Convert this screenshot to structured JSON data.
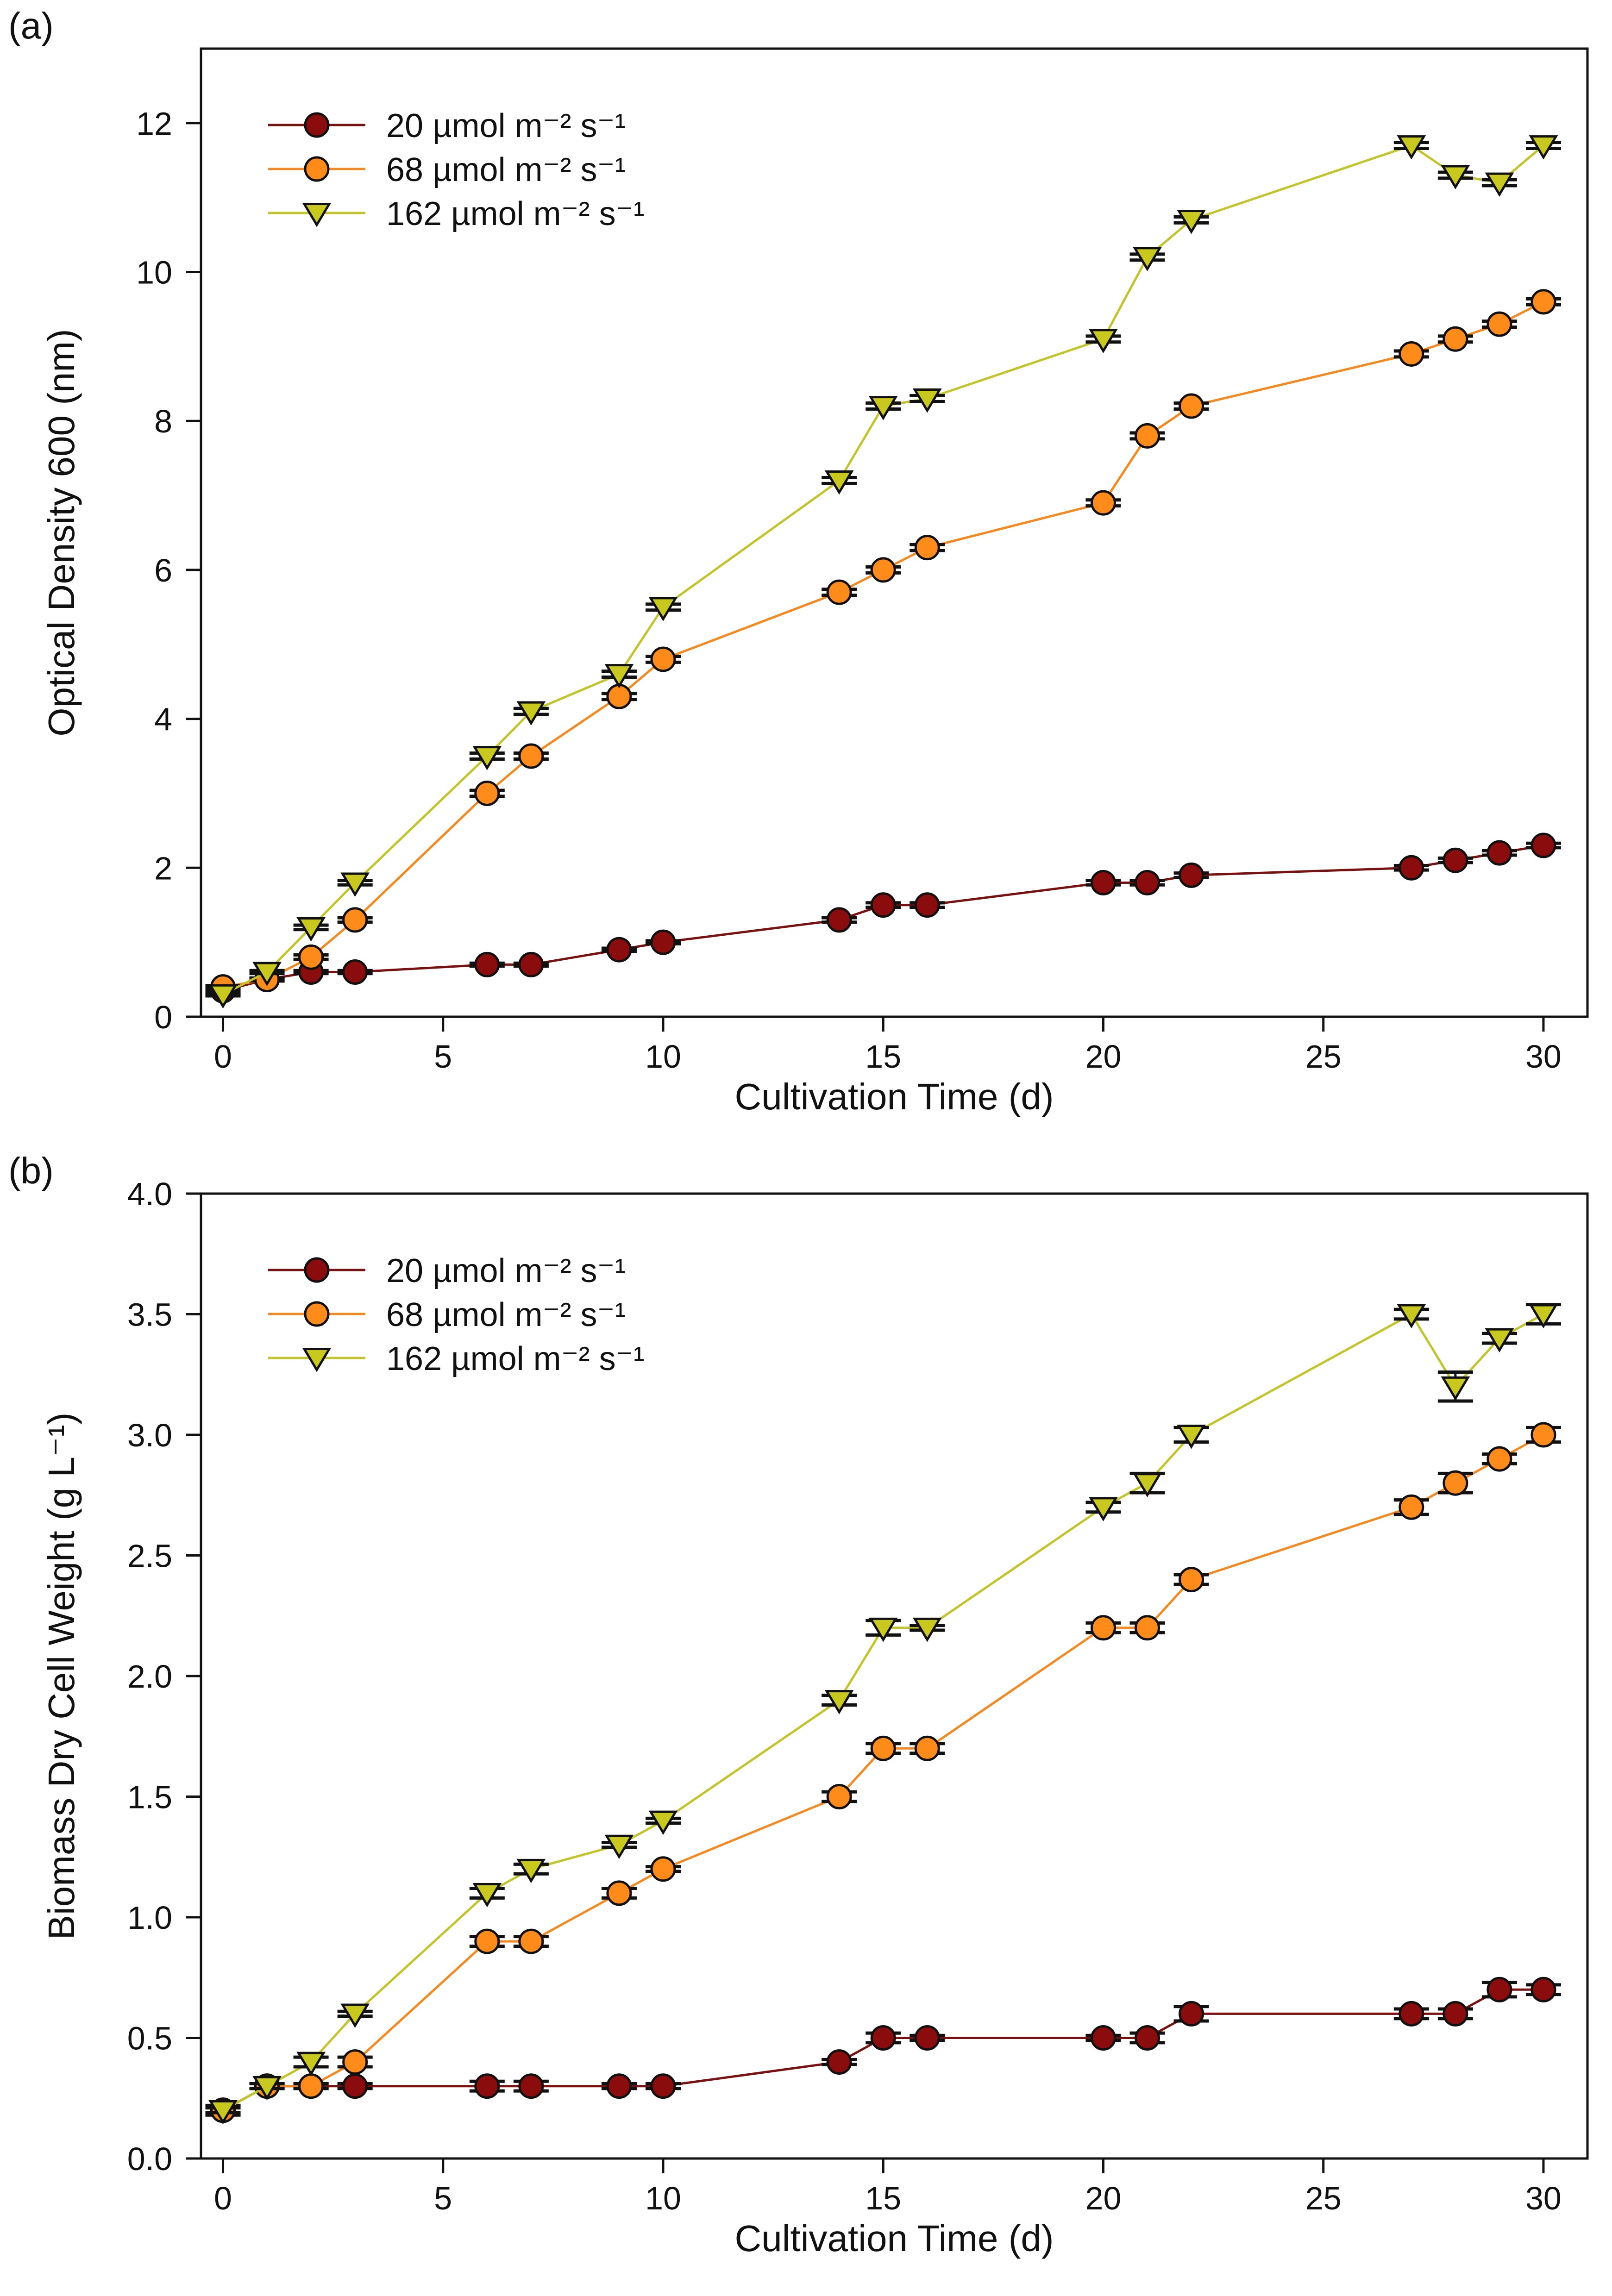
{
  "chart_data": [
    {
      "type": "line",
      "panel_label": "(a)",
      "xlabel": "Cultivation Time (d)",
      "ylabel": "Optical Density 600 (nm)",
      "xlim": [
        -0.5,
        31
      ],
      "ylim": [
        0,
        13
      ],
      "xticks": [
        0,
        5,
        10,
        15,
        20,
        25,
        30
      ],
      "yticks": [
        0,
        2,
        4,
        6,
        8,
        10,
        12
      ],
      "ytick_labels": [
        "0",
        "2",
        "4",
        "6",
        "8",
        "10",
        "12"
      ],
      "grid": false,
      "legend_position": "top-left",
      "x": [
        0,
        1,
        2,
        3,
        6,
        7,
        9,
        10,
        14,
        15,
        16,
        20,
        21,
        22,
        27,
        28,
        29,
        30
      ],
      "series": [
        {
          "name": "20 µmol m⁻² s⁻¹",
          "marker": "circle",
          "line_color": "#7a1010",
          "marker_color": "#8b0c0c",
          "values": [
            0.35,
            0.5,
            0.6,
            0.6,
            0.7,
            0.7,
            0.9,
            1.0,
            1.3,
            1.5,
            1.5,
            1.8,
            1.8,
            1.9,
            2.0,
            2.1,
            2.2,
            2.3
          ],
          "errors": [
            0.02,
            0.02,
            0.02,
            0.02,
            0.02,
            0.02,
            0.02,
            0.02,
            0.03,
            0.03,
            0.03,
            0.03,
            0.03,
            0.03,
            0.03,
            0.03,
            0.03,
            0.03
          ]
        },
        {
          "name": "68 µmol m⁻² s⁻¹",
          "marker": "circle",
          "line_color": "#f5891f",
          "marker_color": "#ff8c1a",
          "values": [
            0.4,
            0.5,
            0.8,
            1.3,
            3.0,
            3.5,
            4.3,
            4.8,
            5.7,
            6.0,
            6.3,
            6.9,
            7.8,
            8.2,
            8.9,
            9.1,
            9.3,
            9.6
          ],
          "errors": [
            0.02,
            0.02,
            0.03,
            0.03,
            0.04,
            0.04,
            0.04,
            0.04,
            0.04,
            0.04,
            0.04,
            0.04,
            0.04,
            0.04,
            0.04,
            0.04,
            0.04,
            0.04
          ]
        },
        {
          "name": "162 µmol m⁻² s⁻¹",
          "marker": "triangle-down",
          "line_color": "#c2c42a",
          "marker_color": "#c8c81e",
          "values": [
            0.3,
            0.6,
            1.2,
            1.8,
            3.5,
            4.1,
            4.6,
            5.5,
            7.2,
            8.2,
            8.3,
            9.1,
            10.2,
            10.7,
            11.7,
            11.3,
            11.2,
            11.7
          ],
          "errors": [
            0.02,
            0.02,
            0.03,
            0.03,
            0.04,
            0.04,
            0.04,
            0.04,
            0.04,
            0.04,
            0.04,
            0.04,
            0.04,
            0.04,
            0.04,
            0.04,
            0.04,
            0.04
          ]
        }
      ]
    },
    {
      "type": "line",
      "panel_label": "(b)",
      "xlabel": "Cultivation Time (d)",
      "ylabel": "Biomass Dry Cell Weight (g L⁻¹)",
      "xlim": [
        -0.5,
        31
      ],
      "ylim": [
        0,
        4.0
      ],
      "xticks": [
        0,
        5,
        10,
        15,
        20,
        25,
        30
      ],
      "yticks": [
        0,
        0.5,
        1.0,
        1.5,
        2.0,
        2.5,
        3.0,
        3.5,
        4.0
      ],
      "ytick_labels": [
        "0.0",
        "0.5",
        "1.0",
        "1.5",
        "2.0",
        "2.5",
        "3.0",
        "3.5",
        "4.0"
      ],
      "grid": false,
      "legend_position": "top-left",
      "x": [
        0,
        1,
        2,
        3,
        6,
        7,
        9,
        10,
        14,
        15,
        16,
        20,
        21,
        22,
        27,
        28,
        29,
        30
      ],
      "series": [
        {
          "name": "20 µmol m⁻² s⁻¹",
          "marker": "circle",
          "line_color": "#7a1010",
          "marker_color": "#8b0c0c",
          "values": [
            0.2,
            0.3,
            0.3,
            0.3,
            0.3,
            0.3,
            0.3,
            0.3,
            0.4,
            0.5,
            0.5,
            0.5,
            0.5,
            0.6,
            0.6,
            0.6,
            0.7,
            0.7
          ],
          "errors": [
            0.02,
            0.01,
            0.01,
            0.01,
            0.02,
            0.02,
            0.01,
            0.01,
            0.01,
            0.02,
            0.01,
            0.01,
            0.02,
            0.03,
            0.02,
            0.02,
            0.03,
            0.02
          ]
        },
        {
          "name": "68 µmol m⁻² s⁻¹",
          "marker": "circle",
          "line_color": "#f5891f",
          "marker_color": "#ff8c1a",
          "values": [
            0.2,
            0.3,
            0.3,
            0.4,
            0.9,
            0.9,
            1.1,
            1.2,
            1.5,
            1.7,
            1.7,
            2.2,
            2.2,
            2.4,
            2.7,
            2.8,
            2.9,
            3.0
          ],
          "errors": [
            0.01,
            0.01,
            0.01,
            0.02,
            0.02,
            0.02,
            0.02,
            0.01,
            0.02,
            0.02,
            0.02,
            0.02,
            0.02,
            0.02,
            0.03,
            0.04,
            0.02,
            0.03
          ]
        },
        {
          "name": "162 µmol m⁻² s⁻¹",
          "marker": "triangle-down",
          "line_color": "#c2c42a",
          "marker_color": "#c8c81e",
          "values": [
            0.2,
            0.3,
            0.4,
            0.6,
            1.1,
            1.2,
            1.3,
            1.4,
            1.9,
            2.2,
            2.2,
            2.7,
            2.8,
            3.0,
            3.5,
            3.2,
            3.4,
            3.5
          ],
          "errors": [
            0.01,
            0.01,
            0.02,
            0.01,
            0.02,
            0.02,
            0.01,
            0.01,
            0.02,
            0.03,
            0.01,
            0.02,
            0.04,
            0.03,
            0.02,
            0.06,
            0.02,
            0.04
          ]
        }
      ]
    }
  ]
}
